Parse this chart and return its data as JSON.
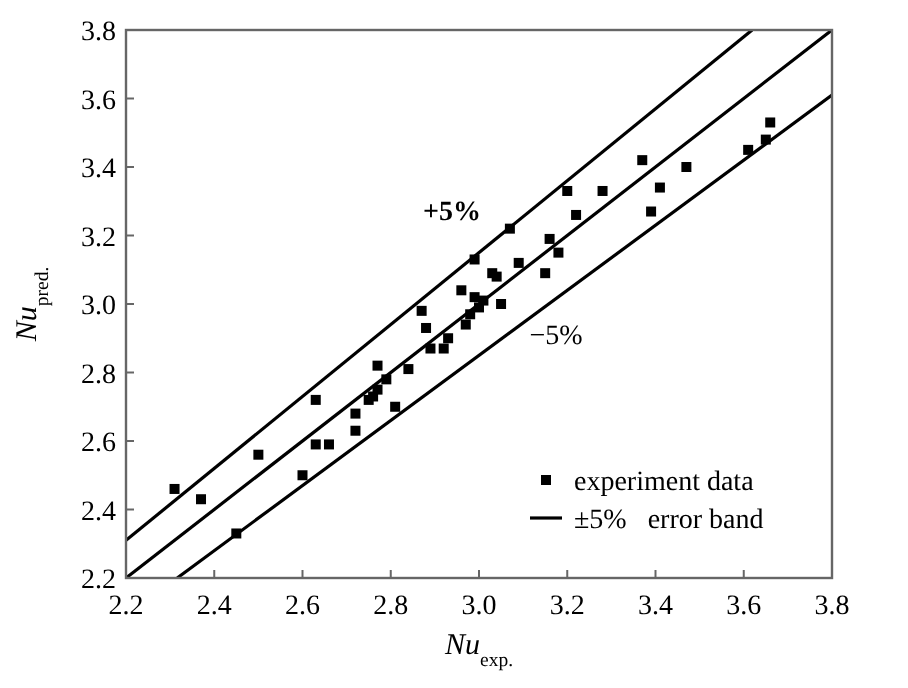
{
  "chart_data": {
    "type": "scatter",
    "xlabel": "Nu$_{exp.}$",
    "ylabel": "Nu$_{pred.}$",
    "xlim": [
      2.2,
      3.8
    ],
    "ylim": [
      2.2,
      3.8
    ],
    "xticks": [
      {
        "value": 2.2,
        "label": "2.2"
      },
      {
        "value": 2.4,
        "label": "2.4"
      },
      {
        "value": 2.6,
        "label": "2.6"
      },
      {
        "value": 2.8,
        "label": "2.8"
      },
      {
        "value": 3.0,
        "label": "3.0"
      },
      {
        "value": 3.2,
        "label": "3.2"
      },
      {
        "value": 3.4,
        "label": "3.4"
      },
      {
        "value": 3.6,
        "label": "3.6"
      },
      {
        "value": 3.8,
        "label": "3.8"
      }
    ],
    "yticks": [
      {
        "value": 2.2,
        "label": "2.2"
      },
      {
        "value": 2.4,
        "label": "2.4"
      },
      {
        "value": 2.6,
        "label": "2.6"
      },
      {
        "value": 2.8,
        "label": "2.8"
      },
      {
        "value": 3.0,
        "label": "3.0"
      },
      {
        "value": 3.2,
        "label": "3.2"
      },
      {
        "value": 3.4,
        "label": "3.4"
      },
      {
        "value": 3.6,
        "label": "3.6"
      },
      {
        "value": 3.8,
        "label": "3.8"
      }
    ],
    "grid": false,
    "legend": "bottom right",
    "marker": "square",
    "series": [
      {
        "name": "experiment data",
        "color": "#000000",
        "x": [
          2.31,
          2.37,
          2.45,
          2.5,
          2.6,
          2.63,
          2.63,
          2.66,
          2.72,
          2.72,
          2.75,
          2.76,
          2.77,
          2.77,
          2.79,
          2.81,
          2.84,
          2.87,
          2.88,
          2.89,
          2.92,
          2.93,
          2.96,
          2.97,
          2.98,
          2.99,
          2.99,
          3.0,
          3.01,
          3.03,
          3.04,
          3.05,
          3.07,
          3.09,
          3.15,
          3.16,
          3.18,
          3.2,
          3.22,
          3.28,
          3.37,
          3.39,
          3.41,
          3.47,
          3.61,
          3.65,
          3.66
        ],
        "values": [
          2.46,
          2.43,
          2.33,
          2.56,
          2.5,
          2.72,
          2.59,
          2.59,
          2.68,
          2.63,
          2.72,
          2.73,
          2.75,
          2.82,
          2.78,
          2.7,
          2.81,
          2.98,
          2.93,
          2.87,
          2.87,
          2.9,
          3.04,
          2.94,
          2.97,
          3.02,
          3.13,
          2.99,
          3.01,
          3.09,
          3.08,
          3.0,
          3.22,
          3.12,
          3.09,
          3.19,
          3.15,
          3.33,
          3.26,
          3.33,
          3.42,
          3.27,
          3.34,
          3.4,
          3.45,
          3.48,
          3.53
        ]
      },
      {
        "name": "±5%   error band",
        "type": "line",
        "marker": "none",
        "color": "#000000",
        "x": [
          2.2,
          3.619
        ],
        "values": [
          2.31,
          3.8
        ]
      },
      {
        "type": "line",
        "marker": "none",
        "color": "#000000",
        "x": [
          2.2,
          3.8
        ],
        "values": [
          2.2,
          3.8
        ]
      },
      {
        "type": "line",
        "marker": "none",
        "color": "#000000",
        "x": [
          2.316,
          3.8
        ],
        "values": [
          2.2,
          3.61
        ]
      }
    ],
    "annotations": [
      "+5%",
      "−5%"
    ]
  }
}
